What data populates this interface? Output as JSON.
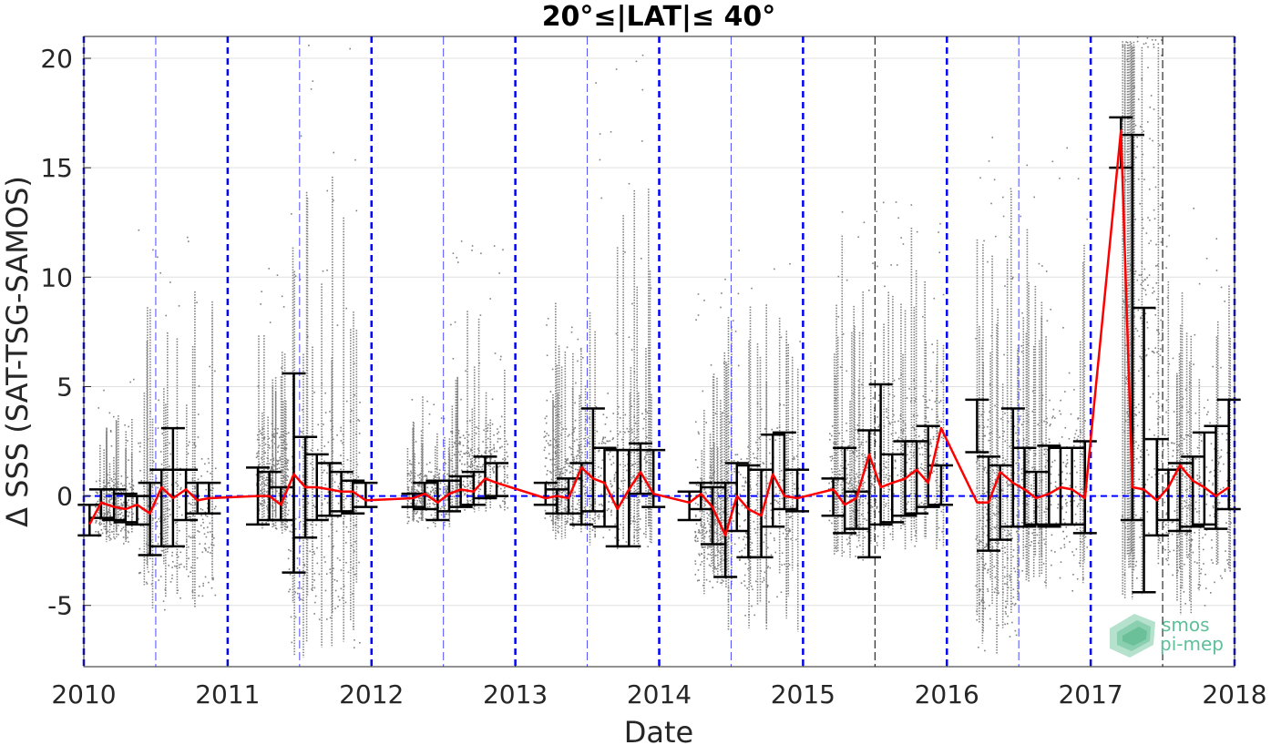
{
  "chart_data": {
    "type": "scatter",
    "title": "20°≤|LAT|≤ 40°",
    "xlabel": "Date",
    "ylabel": "Δ SSS (SAT-TSG-SAMOS)",
    "xlim": [
      2010,
      2018
    ],
    "ylim": [
      -7.8,
      21
    ],
    "xticks": [
      2010,
      2011,
      2012,
      2013,
      2014,
      2015,
      2016,
      2017,
      2018
    ],
    "yticks": [
      -5,
      0,
      5,
      10,
      15,
      20
    ],
    "grid": true,
    "zero_line": 0,
    "year_markers": [
      2010,
      2011,
      2012,
      2013,
      2014,
      2015,
      2016,
      2017,
      2018
    ],
    "midyear_markers": [
      2010.5,
      2011.5,
      2012.5,
      2013.5,
      2014.5,
      2015.5,
      2016.5,
      2017.5
    ],
    "colors": {
      "scatter": "#808080",
      "mean_line": "#ff0000",
      "error_bars": "#000000",
      "year_lines": "#0000ff",
      "zero_line": "#0000ff",
      "midyear_lines_blue": "#4d4dff",
      "midyear_lines_black": "#000000"
    },
    "scatter_clusters": [
      {
        "x0": 2010.08,
        "x1": 2010.35,
        "lo": -2.2,
        "hi": 1.2,
        "peak": 5.5
      },
      {
        "x0": 2010.38,
        "x1": 2010.92,
        "lo": -5.3,
        "hi": 3.5,
        "peak": 13.4
      },
      {
        "x0": 2011.2,
        "x1": 2011.42,
        "lo": -1.8,
        "hi": 3.5,
        "peak": 10.7
      },
      {
        "x0": 2011.42,
        "x1": 2011.92,
        "lo": -7.4,
        "hi": 6.0,
        "peak": 20.8
      },
      {
        "x0": 2012.25,
        "x1": 2012.55,
        "lo": -1.5,
        "hi": 1.8,
        "peak": 4.6
      },
      {
        "x0": 2012.55,
        "x1": 2012.95,
        "lo": -0.8,
        "hi": 3.5,
        "peak": 12.0
      },
      {
        "x0": 2013.2,
        "x1": 2013.5,
        "lo": -2.0,
        "hi": 4.0,
        "peak": 9.0
      },
      {
        "x0": 2013.5,
        "x1": 2013.95,
        "lo": -2.5,
        "hi": 4.5,
        "peak": 20.5
      },
      {
        "x0": 2014.25,
        "x1": 2014.48,
        "lo": -4.5,
        "hi": 2.0,
        "peak": 10.0
      },
      {
        "x0": 2014.48,
        "x1": 2014.98,
        "lo": -6.2,
        "hi": 5.0,
        "peak": 11.6
      },
      {
        "x0": 2015.18,
        "x1": 2015.5,
        "lo": -3.0,
        "hi": 4.0,
        "peak": 13.0
      },
      {
        "x0": 2015.5,
        "x1": 2015.98,
        "lo": -2.5,
        "hi": 6.0,
        "peak": 13.5
      },
      {
        "x0": 2016.2,
        "x1": 2016.5,
        "lo": -7.5,
        "hi": 5.0,
        "peak": 16.4
      },
      {
        "x0": 2016.5,
        "x1": 2016.98,
        "lo": -4.5,
        "hi": 6.0,
        "peak": 17.3
      },
      {
        "x0": 2017.22,
        "x1": 2017.5,
        "lo": -5.0,
        "hi": 20.5,
        "peak": 21.0
      },
      {
        "x0": 2017.5,
        "x1": 2017.98,
        "lo": -5.5,
        "hi": 5.0,
        "peak": 13.4
      }
    ],
    "series": [
      {
        "type": "line",
        "x": [
          2010.04,
          2010.12,
          2010.21,
          2010.29,
          2010.37,
          2010.46,
          2010.54,
          2010.62,
          2010.71,
          2010.79,
          2010.87,
          2011.21,
          2011.29,
          2011.37,
          2011.46,
          2011.54,
          2011.62,
          2011.71,
          2011.79,
          2011.87,
          2011.96,
          2012.29,
          2012.37,
          2012.46,
          2012.54,
          2012.62,
          2012.71,
          2012.79,
          2012.87,
          2013.21,
          2013.29,
          2013.37,
          2013.46,
          2013.54,
          2013.62,
          2013.71,
          2013.79,
          2013.87,
          2013.96,
          2014.21,
          2014.29,
          2014.37,
          2014.46,
          2014.54,
          2014.62,
          2014.71,
          2014.79,
          2014.87,
          2014.96,
          2015.21,
          2015.29,
          2015.37,
          2015.46,
          2015.54,
          2015.62,
          2015.71,
          2015.79,
          2015.87,
          2015.96,
          2016.21,
          2016.29,
          2016.37,
          2016.46,
          2016.54,
          2016.62,
          2016.71,
          2016.79,
          2016.87,
          2016.96,
          2017.21,
          2017.29,
          2017.37,
          2017.46,
          2017.54,
          2017.62,
          2017.71,
          2017.79,
          2017.87,
          2017.96
        ],
        "y": [
          -1.3,
          -0.3,
          -0.5,
          -0.6,
          -0.4,
          -0.8,
          0.4,
          -0.1,
          0.3,
          -0.2,
          -0.1,
          0.0,
          0.0,
          -0.4,
          1.0,
          0.4,
          0.4,
          0.3,
          0.2,
          0.2,
          -0.2,
          -0.1,
          0.1,
          -0.3,
          0.1,
          0.3,
          0.2,
          0.8,
          0.6,
          -0.1,
          0.0,
          -0.1,
          1.3,
          0.8,
          0.6,
          -0.6,
          0.3,
          1.1,
          0.1,
          -0.3,
          0.1,
          -0.5,
          -1.8,
          0.0,
          -0.6,
          -0.9,
          1.0,
          0.0,
          -0.1,
          0.3,
          -0.4,
          -0.1,
          1.9,
          0.4,
          0.6,
          0.8,
          1.2,
          0.6,
          3.1,
          -0.3,
          -0.3,
          1.1,
          0.6,
          0.3,
          -0.1,
          0.1,
          0.4,
          0.3,
          -0.1,
          16.7,
          0.4,
          0.3,
          -0.2,
          0.4,
          1.4,
          0.7,
          0.4,
          0.0,
          0.4
        ]
      },
      {
        "type": "errorbar",
        "x": [
          2010.04,
          2010.12,
          2010.21,
          2010.29,
          2010.37,
          2010.46,
          2010.54,
          2010.62,
          2010.71,
          2010.79,
          2010.87,
          2011.21,
          2011.29,
          2011.37,
          2011.46,
          2011.54,
          2011.62,
          2011.71,
          2011.79,
          2011.87,
          2011.96,
          2012.29,
          2012.37,
          2012.46,
          2012.54,
          2012.62,
          2012.71,
          2012.79,
          2012.87,
          2013.21,
          2013.29,
          2013.37,
          2013.46,
          2013.54,
          2013.62,
          2013.71,
          2013.79,
          2013.87,
          2013.96,
          2014.21,
          2014.29,
          2014.37,
          2014.46,
          2014.54,
          2014.62,
          2014.71,
          2014.79,
          2014.87,
          2014.96,
          2015.21,
          2015.29,
          2015.37,
          2015.46,
          2015.54,
          2015.62,
          2015.71,
          2015.79,
          2015.87,
          2015.96,
          2016.21,
          2016.29,
          2016.37,
          2016.46,
          2016.54,
          2016.62,
          2016.71,
          2016.79,
          2016.87,
          2016.96,
          2017.21,
          2017.29,
          2017.37,
          2017.46,
          2017.54,
          2017.62,
          2017.71,
          2017.79,
          2017.87,
          2017.96
        ],
        "lower": [
          -1.8,
          -1.0,
          -1.1,
          -1.2,
          -1.3,
          -2.7,
          -2.3,
          -2.3,
          -1.1,
          -0.8,
          -0.8,
          -1.3,
          -1.1,
          -1.1,
          -3.5,
          -1.9,
          -1.1,
          -0.9,
          -0.7,
          -0.8,
          -0.5,
          -0.5,
          -0.6,
          -1.1,
          -0.7,
          -0.5,
          -0.4,
          -0.1,
          0.0,
          -0.4,
          -0.8,
          -0.8,
          -1.3,
          -0.7,
          -1.4,
          -2.3,
          -2.3,
          0.1,
          -0.5,
          -1.1,
          -0.6,
          -2.2,
          -3.7,
          -1.6,
          -2.8,
          -2.8,
          -1.4,
          -0.6,
          -0.7,
          -0.9,
          -1.7,
          -1.5,
          -2.8,
          -1.3,
          -1.2,
          -0.9,
          -0.8,
          -0.5,
          -0.4,
          2.0,
          -2.5,
          -2.0,
          -1.4,
          -1.4,
          -1.3,
          -1.4,
          -1.3,
          -1.3,
          -1.7,
          15.0,
          -1.1,
          -4.4,
          -1.8,
          -1.1,
          -1.6,
          -1.4,
          -1.3,
          -1.5,
          -0.6
        ],
        "upper": [
          -0.4,
          0.3,
          0.3,
          0.1,
          0.0,
          0.6,
          1.2,
          3.1,
          1.2,
          0.6,
          0.6,
          1.3,
          1.1,
          0.4,
          5.6,
          2.7,
          1.9,
          1.5,
          1.1,
          0.7,
          0.6,
          0.1,
          0.6,
          0.7,
          0.7,
          0.9,
          1.1,
          1.8,
          1.5,
          0.6,
          0.3,
          0.8,
          1.5,
          4.0,
          2.2,
          2.1,
          2.1,
          2.4,
          2.1,
          0.2,
          0.6,
          0.4,
          0.6,
          1.5,
          1.4,
          1.2,
          2.8,
          2.9,
          1.2,
          0.8,
          2.2,
          0.2,
          3.0,
          5.1,
          1.9,
          2.5,
          2.5,
          3.2,
          1.4,
          4.4,
          1.8,
          1.4,
          4.0,
          2.2,
          1.1,
          2.3,
          2.2,
          2.2,
          2.5,
          17.3,
          16.5,
          8.6,
          2.6,
          1.2,
          1.5,
          1.8,
          2.9,
          3.2,
          4.4
        ]
      }
    ]
  },
  "logo": {
    "line1": "smos",
    "line2": "pi-mep"
  }
}
